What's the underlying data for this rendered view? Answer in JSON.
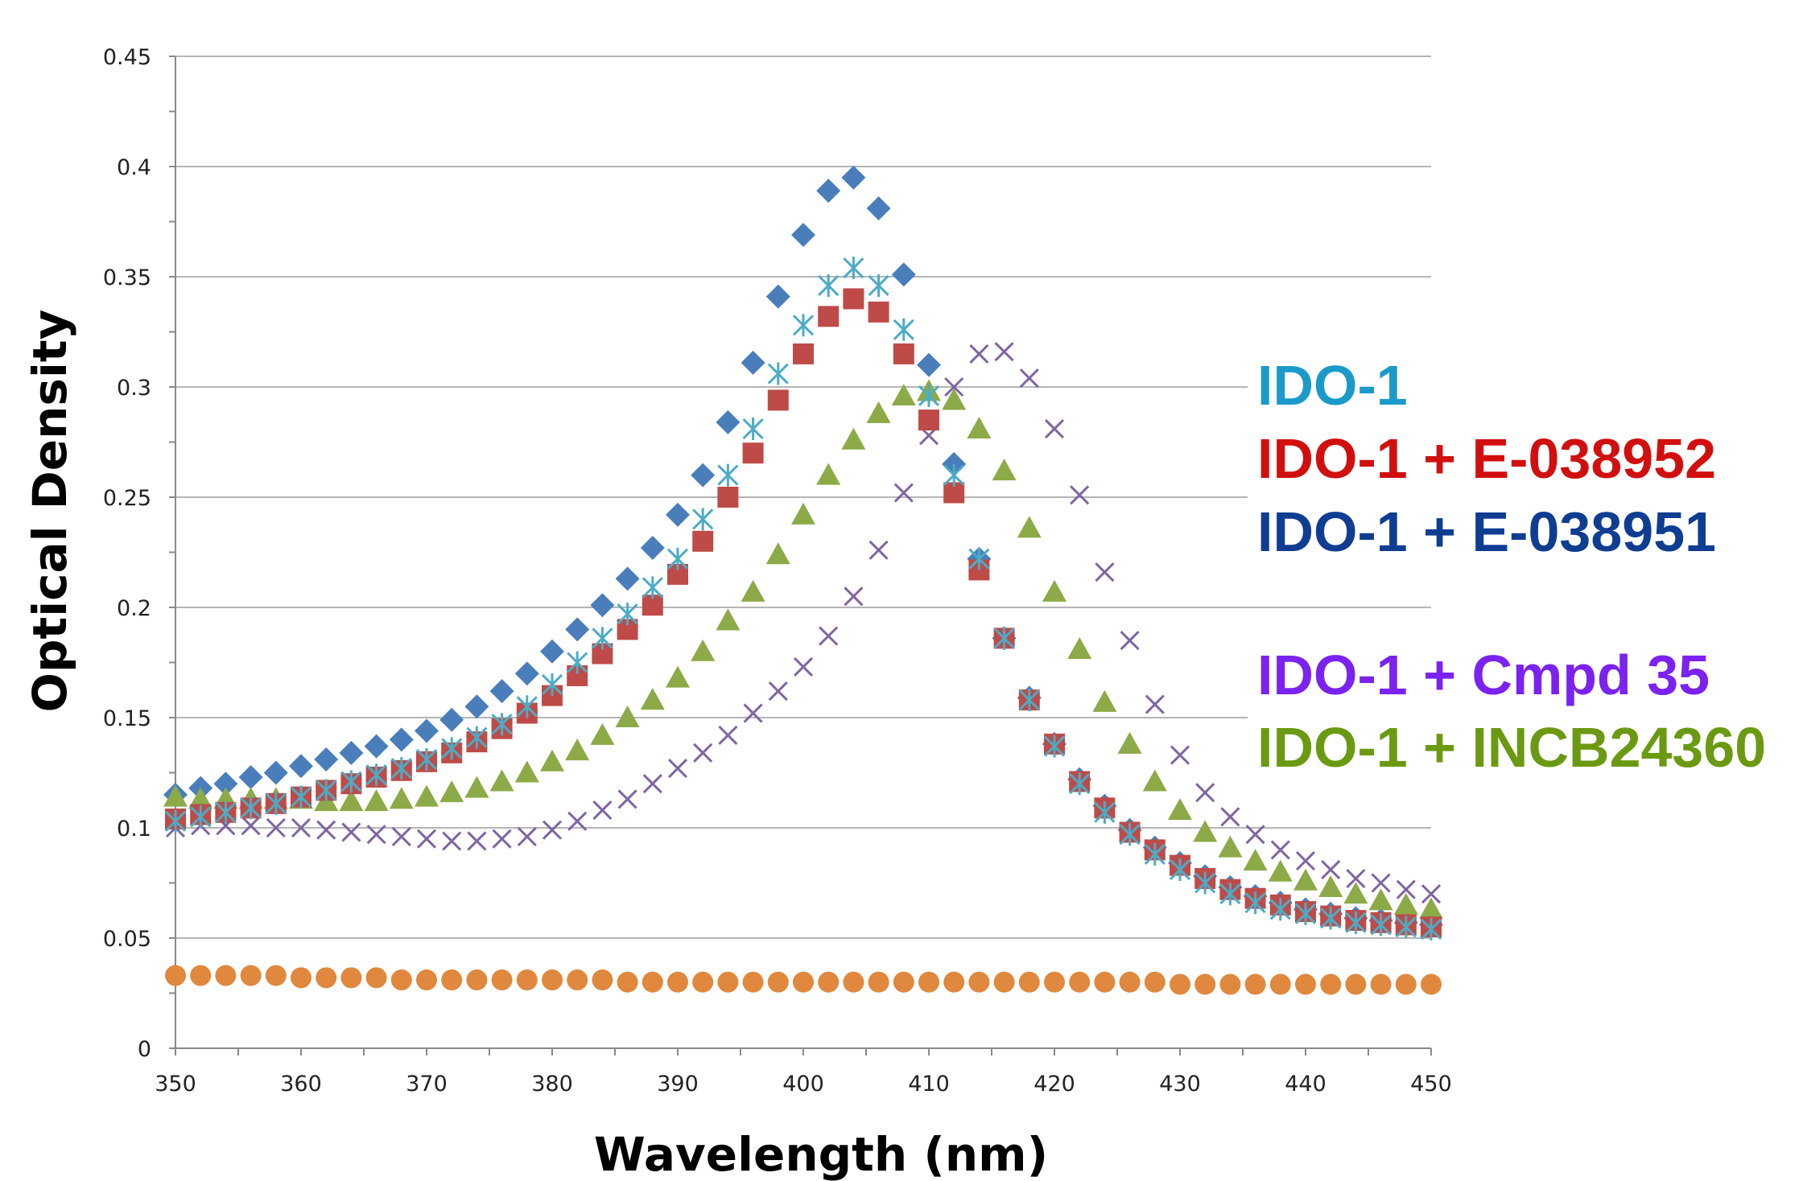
{
  "chart_data": {
    "type": "scatter",
    "title": "",
    "xlabel": "Wavelength (nm)",
    "ylabel": "Optical Density",
    "xlim": [
      350,
      450
    ],
    "ylim": [
      0,
      0.45
    ],
    "xticks": [
      350,
      360,
      370,
      380,
      390,
      400,
      410,
      420,
      430,
      440,
      450
    ],
    "xtick_labels": [
      "350",
      "360",
      "370",
      "380",
      "390",
      "400",
      "410",
      "420",
      "430",
      "440",
      "450"
    ],
    "yticks": [
      0,
      0.05,
      0.1,
      0.15,
      0.2,
      0.25,
      0.3,
      0.35,
      0.4,
      0.45
    ],
    "ytick_labels": [
      "0",
      "0.05",
      "0.1",
      "0.15",
      "0.2",
      "0.25",
      "0.3",
      "0.35",
      "0.4",
      "0.45"
    ],
    "grid": "horizontal",
    "legend_position": "right",
    "legend": [
      {
        "label": "IDO-1",
        "color": "#1b9ac9"
      },
      {
        "label": "IDO-1 + E-038952",
        "color": "#d10f0f"
      },
      {
        "label": "IDO-1 + E-038951",
        "color": "#0f3d92"
      },
      {
        "label": "IDO-1 + Cmpd 35",
        "color": "#7b22f0"
      },
      {
        "label": "IDO-1 + INCB24360",
        "color": "#6b9a12"
      }
    ],
    "x": [
      350,
      352,
      354,
      356,
      358,
      360,
      362,
      364,
      366,
      368,
      370,
      372,
      374,
      376,
      378,
      380,
      382,
      384,
      386,
      388,
      390,
      392,
      394,
      396,
      398,
      400,
      402,
      404,
      406,
      408,
      410,
      412,
      414,
      416,
      418,
      420,
      422,
      424,
      426,
      428,
      430,
      432,
      434,
      436,
      438,
      440,
      442,
      444,
      446,
      448,
      450
    ],
    "series": [
      {
        "marker": "diamond",
        "color": "#4a7ebb",
        "values": [
          0.115,
          0.118,
          0.12,
          0.123,
          0.125,
          0.128,
          0.131,
          0.134,
          0.137,
          0.14,
          0.144,
          0.149,
          0.155,
          0.162,
          0.17,
          0.18,
          0.19,
          0.201,
          0.213,
          0.227,
          0.242,
          0.26,
          0.284,
          0.311,
          0.341,
          0.369,
          0.389,
          0.395,
          0.381,
          0.351,
          0.31,
          0.265,
          0.222,
          0.186,
          0.159,
          0.138,
          0.122,
          0.11,
          0.099,
          0.091,
          0.084,
          0.078,
          0.073,
          0.069,
          0.066,
          0.063,
          0.061,
          0.059,
          0.058,
          0.057,
          0.056
        ]
      },
      {
        "marker": "square",
        "color": "#be4b48",
        "values": [
          0.104,
          0.106,
          0.107,
          0.109,
          0.111,
          0.114,
          0.117,
          0.12,
          0.123,
          0.126,
          0.13,
          0.134,
          0.139,
          0.145,
          0.152,
          0.16,
          0.169,
          0.179,
          0.19,
          0.201,
          0.215,
          0.23,
          0.25,
          0.27,
          0.294,
          0.315,
          0.332,
          0.34,
          0.334,
          0.315,
          0.285,
          0.252,
          0.217,
          0.186,
          0.158,
          0.138,
          0.121,
          0.109,
          0.098,
          0.09,
          0.083,
          0.077,
          0.072,
          0.068,
          0.065,
          0.062,
          0.06,
          0.058,
          0.057,
          0.056,
          0.055
        ]
      },
      {
        "marker": "asterisk",
        "color": "#4bacc6",
        "values": [
          0.103,
          0.105,
          0.107,
          0.109,
          0.111,
          0.114,
          0.117,
          0.121,
          0.124,
          0.127,
          0.131,
          0.136,
          0.141,
          0.147,
          0.155,
          0.165,
          0.175,
          0.186,
          0.197,
          0.209,
          0.222,
          0.24,
          0.26,
          0.281,
          0.306,
          0.328,
          0.346,
          0.354,
          0.346,
          0.326,
          0.296,
          0.26,
          0.222,
          0.186,
          0.158,
          0.137,
          0.12,
          0.107,
          0.097,
          0.088,
          0.081,
          0.075,
          0.07,
          0.066,
          0.063,
          0.061,
          0.059,
          0.057,
          0.056,
          0.055,
          0.054
        ]
      },
      {
        "marker": "x",
        "color": "#7f65a2",
        "values": [
          0.1,
          0.101,
          0.101,
          0.101,
          0.1,
          0.1,
          0.099,
          0.098,
          0.097,
          0.096,
          0.095,
          0.094,
          0.094,
          0.095,
          0.096,
          0.099,
          0.103,
          0.108,
          0.113,
          0.12,
          0.127,
          0.134,
          0.142,
          0.152,
          0.162,
          0.173,
          0.187,
          0.205,
          0.226,
          0.252,
          0.278,
          0.3,
          0.315,
          0.316,
          0.304,
          0.281,
          0.251,
          0.216,
          0.185,
          0.156,
          0.133,
          0.116,
          0.105,
          0.097,
          0.09,
          0.085,
          0.081,
          0.077,
          0.075,
          0.072,
          0.07
        ]
      },
      {
        "marker": "triangle",
        "color": "#8caa47",
        "values": [
          0.114,
          0.113,
          0.113,
          0.113,
          0.113,
          0.113,
          0.112,
          0.112,
          0.112,
          0.113,
          0.114,
          0.116,
          0.118,
          0.121,
          0.125,
          0.13,
          0.135,
          0.142,
          0.15,
          0.158,
          0.168,
          0.18,
          0.194,
          0.207,
          0.224,
          0.242,
          0.26,
          0.276,
          0.288,
          0.296,
          0.298,
          0.294,
          0.281,
          0.262,
          0.236,
          0.207,
          0.181,
          0.157,
          0.138,
          0.121,
          0.108,
          0.098,
          0.091,
          0.085,
          0.08,
          0.076,
          0.073,
          0.07,
          0.067,
          0.065,
          0.063
        ]
      },
      {
        "marker": "circle",
        "color": "#e0883d",
        "values": [
          0.033,
          0.033,
          0.033,
          0.033,
          0.033,
          0.032,
          0.032,
          0.032,
          0.032,
          0.031,
          0.031,
          0.031,
          0.031,
          0.031,
          0.031,
          0.031,
          0.031,
          0.031,
          0.03,
          0.03,
          0.03,
          0.03,
          0.03,
          0.03,
          0.03,
          0.03,
          0.03,
          0.03,
          0.03,
          0.03,
          0.03,
          0.03,
          0.03,
          0.03,
          0.03,
          0.03,
          0.03,
          0.03,
          0.03,
          0.03,
          0.029,
          0.029,
          0.029,
          0.029,
          0.029,
          0.029,
          0.029,
          0.029,
          0.029,
          0.029,
          0.029
        ]
      }
    ]
  }
}
